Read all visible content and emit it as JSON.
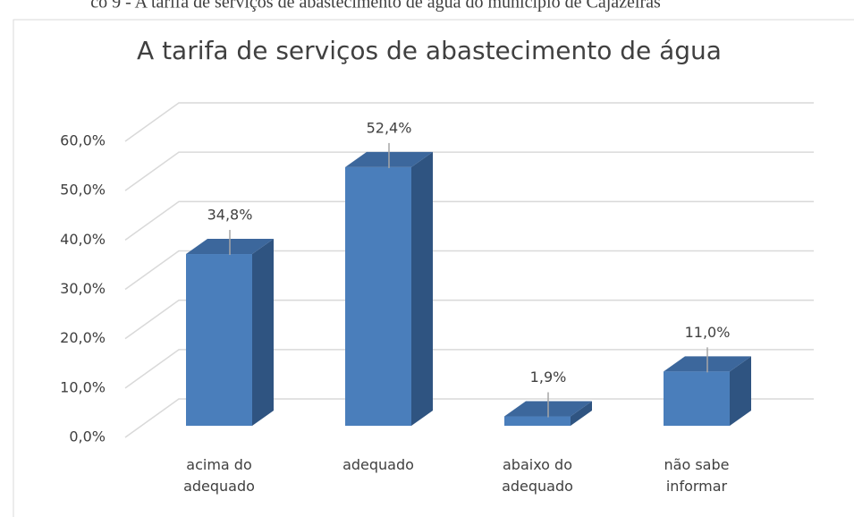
{
  "caption": "co 9 - A tarifa de serviços de abastecimento de água do município de Cajazeiras",
  "chart_data": {
    "type": "bar3d",
    "title": "A tarifa de serviços de abastecimento de água",
    "categories": [
      "acima do adequado",
      "adequado",
      "abaixo do adequado",
      "não sabe informar"
    ],
    "values": [
      34.8,
      52.4,
      1.9,
      11.0
    ],
    "value_labels": [
      "34,8%",
      "52,4%",
      "1,9%",
      "11,0%"
    ],
    "color": "#4a7ebb",
    "ylim": [
      0,
      60
    ],
    "yticks": [
      {
        "value": 0,
        "label": "0,0%"
      },
      {
        "value": 10,
        "label": "10,0%"
      },
      {
        "value": 20,
        "label": "20,0%"
      },
      {
        "value": 30,
        "label": "30,0%"
      },
      {
        "value": 40,
        "label": "40,0%"
      },
      {
        "value": 50,
        "label": "50,0%"
      },
      {
        "value": 60,
        "label": "60,0%"
      }
    ],
    "grid": true
  }
}
